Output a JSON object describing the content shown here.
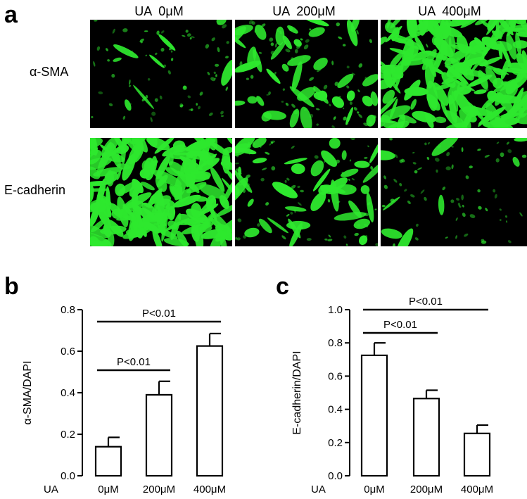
{
  "figure": {
    "panel_a_label": "a",
    "panel_b_label": "b",
    "panel_c_label": "c",
    "columns": [
      "UA  0μM",
      "UA  200μM",
      "UA  400μM"
    ],
    "rows": [
      "α-SMA",
      "E-cadherin"
    ],
    "stain_color": "#2ee82e",
    "stain_density": [
      [
        0.12,
        0.38,
        0.95
      ],
      [
        0.98,
        0.42,
        0.12
      ]
    ]
  },
  "chart_data": [
    {
      "type": "bar",
      "panel": "b",
      "ylabel": "α-SMA/DAPI",
      "xprefix": "UA",
      "categories": [
        "0μM",
        "200μM",
        "400μM"
      ],
      "values": [
        0.14,
        0.39,
        0.625
      ],
      "errors": [
        0.045,
        0.065,
        0.06
      ],
      "ylim": [
        0.0,
        0.8
      ],
      "yticks": [
        "0.0",
        "0.2",
        "0.4",
        "0.6",
        "0.8"
      ],
      "brackets": [
        {
          "from": 0,
          "to": 1,
          "label": "P<0.01"
        },
        {
          "from": 0,
          "to": 2,
          "label": "P<0.01"
        }
      ],
      "grid": false
    },
    {
      "type": "bar",
      "panel": "c",
      "ylabel": "E-cadherin/DAPI",
      "xprefix": "UA",
      "categories": [
        "0μM",
        "200μM",
        "400μM"
      ],
      "values": [
        0.725,
        0.465,
        0.255
      ],
      "errors": [
        0.075,
        0.05,
        0.05
      ],
      "ylim": [
        0.0,
        1.0
      ],
      "yticks": [
        "0.0",
        "0.2",
        "0.4",
        "0.6",
        "0.8",
        "1.0"
      ],
      "brackets": [
        {
          "from": 0,
          "to": 1,
          "label": "P<0.01"
        },
        {
          "from": 0,
          "to": 2,
          "label": "P<0.01"
        }
      ],
      "grid": false
    }
  ]
}
